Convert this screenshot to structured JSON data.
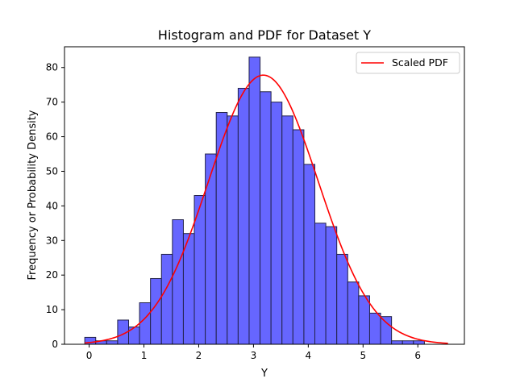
{
  "chart_data": {
    "type": "bar",
    "title": "Histogram and PDF for Dataset Y",
    "xlabel": "Y",
    "ylabel": "Frequency or Probability Density",
    "xlim": [
      -0.45,
      6.85
    ],
    "ylim": [
      0,
      86
    ],
    "xticks": [
      0,
      1,
      2,
      3,
      4,
      5,
      6
    ],
    "yticks": [
      0,
      10,
      20,
      30,
      40,
      50,
      60,
      70,
      80
    ],
    "grid": false,
    "legend_position": "top-right",
    "histogram": {
      "bin_edges": [
        -0.08,
        0.12,
        0.32,
        0.52,
        0.72,
        0.92,
        1.12,
        1.32,
        1.52,
        1.72,
        1.92,
        2.12,
        2.32,
        2.52,
        2.72,
        2.92,
        3.12,
        3.32,
        3.52,
        3.72,
        3.92,
        4.12,
        4.32,
        4.52,
        4.72,
        4.92,
        5.12,
        5.32,
        5.52,
        5.72,
        5.92,
        6.12,
        6.32
      ],
      "counts": [
        2,
        1,
        1,
        7,
        5,
        12,
        19,
        26,
        36,
        32,
        43,
        55,
        67,
        66,
        74,
        83,
        73,
        70,
        66,
        62,
        52,
        35,
        34,
        26,
        18,
        14,
        9,
        8,
        1,
        1,
        1,
        0
      ],
      "color": "#6666ff",
      "edge_color": "#22224a"
    },
    "series": [
      {
        "name": "Scaled PDF",
        "type": "line",
        "color": "#ff0000",
        "curve": {
          "kind": "normal",
          "mean": 3.18,
          "std": 1.0,
          "x_start": -0.08,
          "x_end": 6.55,
          "peak": 77.8
        }
      }
    ],
    "legend": [
      "Scaled PDF"
    ]
  }
}
